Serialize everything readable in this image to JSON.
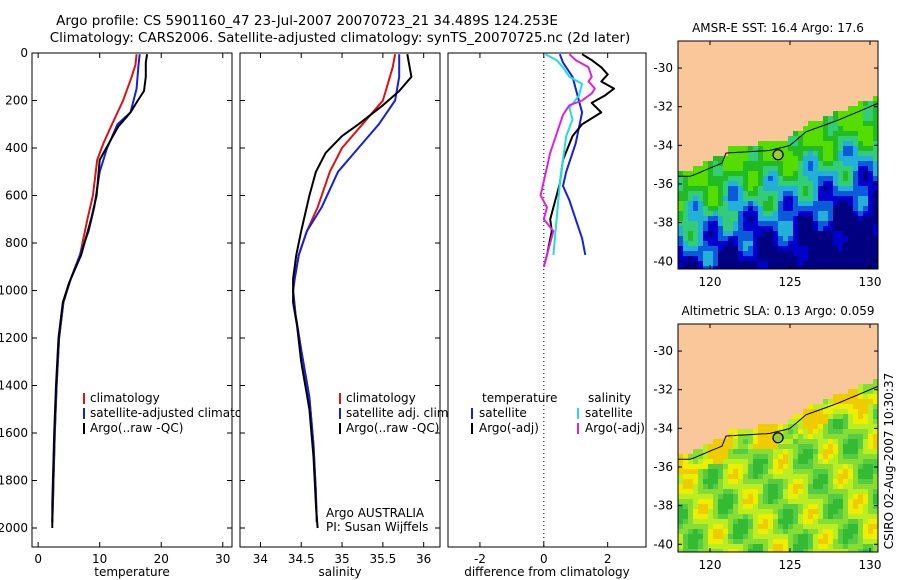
{
  "header": {
    "line1": "Argo profile: CS 5901160_47 23-Jul-2007 20070723_21 34.489S 124.253E",
    "line2": "Climatology: CARS2006. Satellite-adjusted climatology: synTS_20070725.nc (2d later)"
  },
  "side_stamp": "CSIRO 02-Aug-2007 10:30:37",
  "colors": {
    "clim": "#dd1111",
    "sat": "#1122dd",
    "argo": "#000000",
    "sat_sal": "#22dddd",
    "argo_sal": "#dd22dd",
    "land": "#f9c79a"
  },
  "chart_data": [
    {
      "id": "temperature",
      "type": "line",
      "xlabel": "temperature",
      "ylabel": "",
      "xlim": [
        -1,
        31.5
      ],
      "ylim": [
        2080,
        0
      ],
      "xticks": [
        0,
        10,
        20,
        30
      ],
      "yticks": [
        0,
        200,
        400,
        600,
        800,
        1000,
        1200,
        1400,
        1600,
        1800,
        2000
      ],
      "legend": {
        "entries": [
          {
            "label": "climatology",
            "color": "#dd1111"
          },
          {
            "label": "satellite-adjusted climatology",
            "color": "#1122dd"
          },
          {
            "label": "Argo(..raw -QC)",
            "color": "#000000"
          }
        ]
      },
      "series": [
        {
          "name": "climatology",
          "color": "#dd1111",
          "x": [
            16.0,
            15.8,
            15.2,
            13.8,
            12.0,
            10.6,
            9.6,
            8.9,
            8.0,
            6.8,
            5.3,
            4.1,
            3.4,
            3.0,
            2.7,
            2.5,
            2.4,
            2.3
          ],
          "y": [
            5,
            50,
            100,
            200,
            300,
            380,
            450,
            600,
            700,
            850,
            950,
            1050,
            1200,
            1400,
            1600,
            1800,
            1900,
            1975
          ]
        },
        {
          "name": "satellite-adjusted climatology",
          "color": "#1122dd",
          "x": [
            16.5,
            16.3,
            16.0,
            15.0,
            12.9,
            11.2,
            10.0,
            9.1,
            8.2,
            6.8,
            5.3,
            4.1,
            3.4,
            3.0,
            2.7,
            2.5,
            2.4,
            2.3
          ],
          "y": [
            5,
            50,
            150,
            250,
            300,
            400,
            500,
            650,
            750,
            850,
            950,
            1050,
            1200,
            1400,
            1600,
            1800,
            1900,
            1975
          ]
        },
        {
          "name": "Argo(..raw -QC)",
          "color": "#000000",
          "x": [
            17.7,
            17.5,
            17.5,
            17.2,
            16.2,
            15.0,
            13.0,
            11.5,
            10.0,
            9.5,
            8.6,
            7.0,
            5.0,
            4.0,
            3.3,
            2.9,
            2.6,
            2.4,
            2.3,
            2.3
          ],
          "y": [
            5,
            40,
            100,
            160,
            200,
            250,
            310,
            380,
            450,
            600,
            700,
            850,
            970,
            1050,
            1200,
            1400,
            1600,
            1800,
            1900,
            2000
          ]
        }
      ]
    },
    {
      "id": "salinity",
      "type": "line",
      "xlabel": "salinity",
      "ylabel": "",
      "xlim": [
        33.75,
        36.2
      ],
      "ylim": [
        2080,
        0
      ],
      "xticks": [
        34,
        34.5,
        35,
        35.5,
        36
      ],
      "yticks": [
        0,
        200,
        400,
        600,
        800,
        1000,
        1200,
        1400,
        1600,
        1800,
        2000
      ],
      "legend": {
        "entries": [
          {
            "label": "climatology",
            "color": "#dd1111"
          },
          {
            "label": "satellite adj. clim.",
            "color": "#1122dd"
          },
          {
            "label": "Argo(..raw -QC)",
            "color": "#000000"
          }
        ]
      },
      "annotation": [
        "Argo AUSTRALIA",
        "PI: Susan Wijffels"
      ],
      "series": [
        {
          "name": "climatology",
          "color": "#dd1111",
          "x": [
            35.65,
            35.62,
            35.5,
            35.25,
            35.0,
            34.85,
            34.7,
            34.57,
            34.47,
            34.42,
            34.4,
            34.43,
            34.5,
            34.6,
            34.65,
            34.68,
            34.69
          ],
          "y": [
            5,
            60,
            200,
            300,
            400,
            500,
            650,
            750,
            850,
            950,
            1000,
            1100,
            1250,
            1450,
            1650,
            1850,
            1975
          ]
        },
        {
          "name": "satellite adj. clim.",
          "color": "#1122dd",
          "x": [
            35.7,
            35.7,
            35.65,
            35.45,
            35.2,
            34.95,
            34.75,
            34.57,
            34.47,
            34.42,
            34.4,
            34.43,
            34.5,
            34.6,
            34.65,
            34.68,
            34.69
          ],
          "y": [
            5,
            100,
            200,
            300,
            400,
            500,
            650,
            750,
            850,
            950,
            1000,
            1100,
            1250,
            1450,
            1650,
            1850,
            1975
          ]
        },
        {
          "name": "Argo(..raw -QC)",
          "color": "#000000",
          "x": [
            35.8,
            35.85,
            35.7,
            35.5,
            35.2,
            35.0,
            34.8,
            34.68,
            34.6,
            34.5,
            34.44,
            34.4,
            34.4,
            34.45,
            34.5,
            34.6,
            34.65,
            34.68,
            34.7
          ],
          "y": [
            5,
            100,
            160,
            220,
            300,
            350,
            420,
            500,
            600,
            750,
            850,
            950,
            1050,
            1150,
            1300,
            1500,
            1700,
            1900,
            2000
          ]
        }
      ]
    },
    {
      "id": "difference",
      "type": "line",
      "xlabel": "difference from climatology",
      "ylabel": "",
      "xlim": [
        -3,
        3.2
      ],
      "ylim": [
        2080,
        0
      ],
      "xticks": [
        -2,
        0,
        2
      ],
      "zero_line": true,
      "legend": {
        "entries": [
          {
            "label": "temperature",
            "color": null
          },
          {
            "label": "satellite",
            "color": "#1122dd"
          },
          {
            "label": "Argo(-adj)",
            "color": "#000000"
          },
          {
            "label": "salinity",
            "color": null
          },
          {
            "label": "satellite",
            "color": "#22dddd"
          },
          {
            "label": "Argo(-adj)",
            "color": "#dd22dd"
          }
        ]
      },
      "series": [
        {
          "name": "temperature satellite",
          "color": "#1122dd",
          "x": [
            0.5,
            0.6,
            0.9,
            1.1,
            1.2,
            1.0,
            0.7,
            0.6,
            0.8,
            1.0,
            1.2,
            1.3
          ],
          "y": [
            5,
            40,
            100,
            200,
            250,
            380,
            500,
            560,
            620,
            700,
            780,
            850
          ]
        },
        {
          "name": "temperature Argo(-adj)",
          "color": "#000000",
          "x": [
            1.2,
            1.5,
            1.8,
            2.0,
            1.8,
            2.2,
            1.9,
            1.5,
            1.8,
            1.2,
            0.9,
            0.6,
            0.5,
            0.3,
            0.2,
            0.25,
            0.1,
            0.0
          ],
          "y": [
            5,
            30,
            60,
            90,
            120,
            150,
            180,
            210,
            250,
            300,
            350,
            450,
            550,
            650,
            700,
            750,
            850,
            900
          ]
        },
        {
          "name": "salinity satellite",
          "color": "#22dddd",
          "x": [
            0.05,
            0.4,
            0.6,
            0.8,
            1.2,
            1.1,
            0.8,
            0.9,
            0.7,
            0.6,
            0.5,
            0.4,
            0.3
          ],
          "y": [
            5,
            30,
            60,
            100,
            130,
            180,
            230,
            280,
            350,
            450,
            550,
            700,
            850
          ]
        },
        {
          "name": "salinity Argo(-adj)",
          "color": "#dd22dd",
          "x": [
            0.8,
            1.0,
            1.4,
            1.5,
            1.4,
            1.6,
            1.5,
            1.2,
            0.8,
            0.6,
            0.5,
            0.3,
            0.2,
            0.1,
            -0.1,
            0.1,
            0.0,
            0.3,
            0.2,
            0.0
          ],
          "y": [
            5,
            30,
            60,
            100,
            120,
            150,
            170,
            200,
            220,
            260,
            300,
            380,
            420,
            480,
            600,
            650,
            700,
            750,
            800,
            900
          ]
        }
      ]
    }
  ],
  "maps": [
    {
      "id": "sst",
      "title": "AMSR-E SST: 16.4 Argo: 17.6",
      "xlim": [
        118,
        130.5
      ],
      "ylim": [
        -40.4,
        -28.6
      ],
      "xticks": [
        120,
        125,
        130
      ],
      "yticks": [
        -30,
        -32,
        -34,
        -36,
        -38,
        -40
      ],
      "float": {
        "lon": 124.253,
        "lat": -34.489
      },
      "ramp": [
        "#000080",
        "#0000cd",
        "#0a5adc",
        "#22b0d8",
        "#33cc77",
        "#22bb22",
        "#55dd00"
      ]
    },
    {
      "id": "sla",
      "title": "Altimetric SLA: 0.13 Argo: 0.059",
      "xlim": [
        118,
        130.5
      ],
      "ylim": [
        -40.4,
        -28.6
      ],
      "xticks": [
        120,
        125,
        130
      ],
      "yticks": [
        -30,
        -32,
        -34,
        -36,
        -38,
        -40
      ],
      "float": {
        "lon": 124.253,
        "lat": -34.489
      },
      "ramp": [
        "#33bb33",
        "#55cc44",
        "#88dd33",
        "#bbee22",
        "#eeee00",
        "#eecc00"
      ]
    }
  ]
}
